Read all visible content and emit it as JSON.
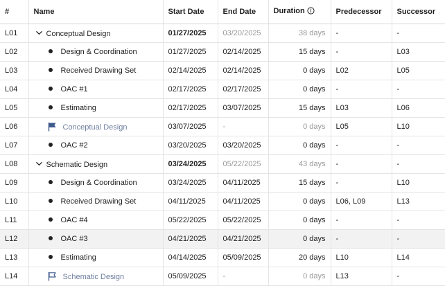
{
  "columns": {
    "id": "#",
    "name": "Name",
    "start": "Start Date",
    "end": "End Date",
    "duration": "Duration",
    "predecessor": "Predecessor",
    "successor": "Successor"
  },
  "rows": [
    {
      "id": "L01",
      "type": "summary",
      "name": "Conceptual Design",
      "start": "01/27/2025",
      "end": "03/20/2025",
      "duration": "38 days",
      "predecessor": "-",
      "successor": "-"
    },
    {
      "id": "L02",
      "type": "task",
      "name": "Design & Coordination",
      "start": "01/27/2025",
      "end": "02/14/2025",
      "duration": "15 days",
      "predecessor": "-",
      "successor": "L03"
    },
    {
      "id": "L03",
      "type": "task",
      "name": "Received Drawing Set",
      "start": "02/14/2025",
      "end": "02/14/2025",
      "duration": "0 days",
      "predecessor": "L02",
      "successor": "L05"
    },
    {
      "id": "L04",
      "type": "task",
      "name": "OAC #1",
      "start": "02/17/2025",
      "end": "02/17/2025",
      "duration": "0 days",
      "predecessor": "-",
      "successor": "-"
    },
    {
      "id": "L05",
      "type": "task",
      "name": "Estimating",
      "start": "02/17/2025",
      "end": "03/07/2025",
      "duration": "15 days",
      "predecessor": "L03",
      "successor": "L06"
    },
    {
      "id": "L06",
      "type": "milestone",
      "flag": "filled",
      "name": "Conceptual Design",
      "start": "03/07/2025",
      "end": "-",
      "duration": "0 days",
      "predecessor": "L05",
      "successor": "L10"
    },
    {
      "id": "L07",
      "type": "task",
      "name": "OAC #2",
      "start": "03/20/2025",
      "end": "03/20/2025",
      "duration": "0 days",
      "predecessor": "-",
      "successor": "-"
    },
    {
      "id": "L08",
      "type": "summary",
      "name": "Schematic Design",
      "start": "03/24/2025",
      "end": "05/22/2025",
      "duration": "43 days",
      "predecessor": "-",
      "successor": "-"
    },
    {
      "id": "L09",
      "type": "task",
      "name": "Design & Coordination",
      "start": "03/24/2025",
      "end": "04/11/2025",
      "duration": "15 days",
      "predecessor": "-",
      "successor": "L10"
    },
    {
      "id": "L10",
      "type": "task",
      "name": "Received Drawing Set",
      "start": "04/11/2025",
      "end": "04/11/2025",
      "duration": "0 days",
      "predecessor": "L06, L09",
      "successor": "L13"
    },
    {
      "id": "L11",
      "type": "task",
      "name": "OAC #4",
      "start": "05/22/2025",
      "end": "05/22/2025",
      "duration": "0 days",
      "predecessor": "-",
      "successor": "-"
    },
    {
      "id": "L12",
      "type": "task",
      "selected": true,
      "name": "OAC #3",
      "start": "04/21/2025",
      "end": "04/21/2025",
      "duration": "0 days",
      "predecessor": "-",
      "successor": "-"
    },
    {
      "id": "L13",
      "type": "task",
      "name": "Estimating",
      "start": "04/14/2025",
      "end": "05/09/2025",
      "duration": "20 days",
      "predecessor": "L10",
      "successor": "L14"
    },
    {
      "id": "L14",
      "type": "milestone",
      "flag": "outline",
      "name": "Schematic Design",
      "start": "05/09/2025",
      "end": "-",
      "duration": "0 days",
      "predecessor": "L13",
      "successor": "-"
    }
  ],
  "colors": {
    "milestone_flag": "#3d5a8c",
    "milestone_text": "#6f7f9f",
    "muted_text": "#9a9a9a",
    "selected_row_bg": "#f2f2f2",
    "grid_line": "#e4e4e4"
  },
  "icons": {
    "duration_header": "info-circle-icon",
    "summary": "chevron-down-icon",
    "task": "bullet-icon",
    "milestone_filled": "flag-filled-icon",
    "milestone_outline": "flag-outline-icon"
  }
}
